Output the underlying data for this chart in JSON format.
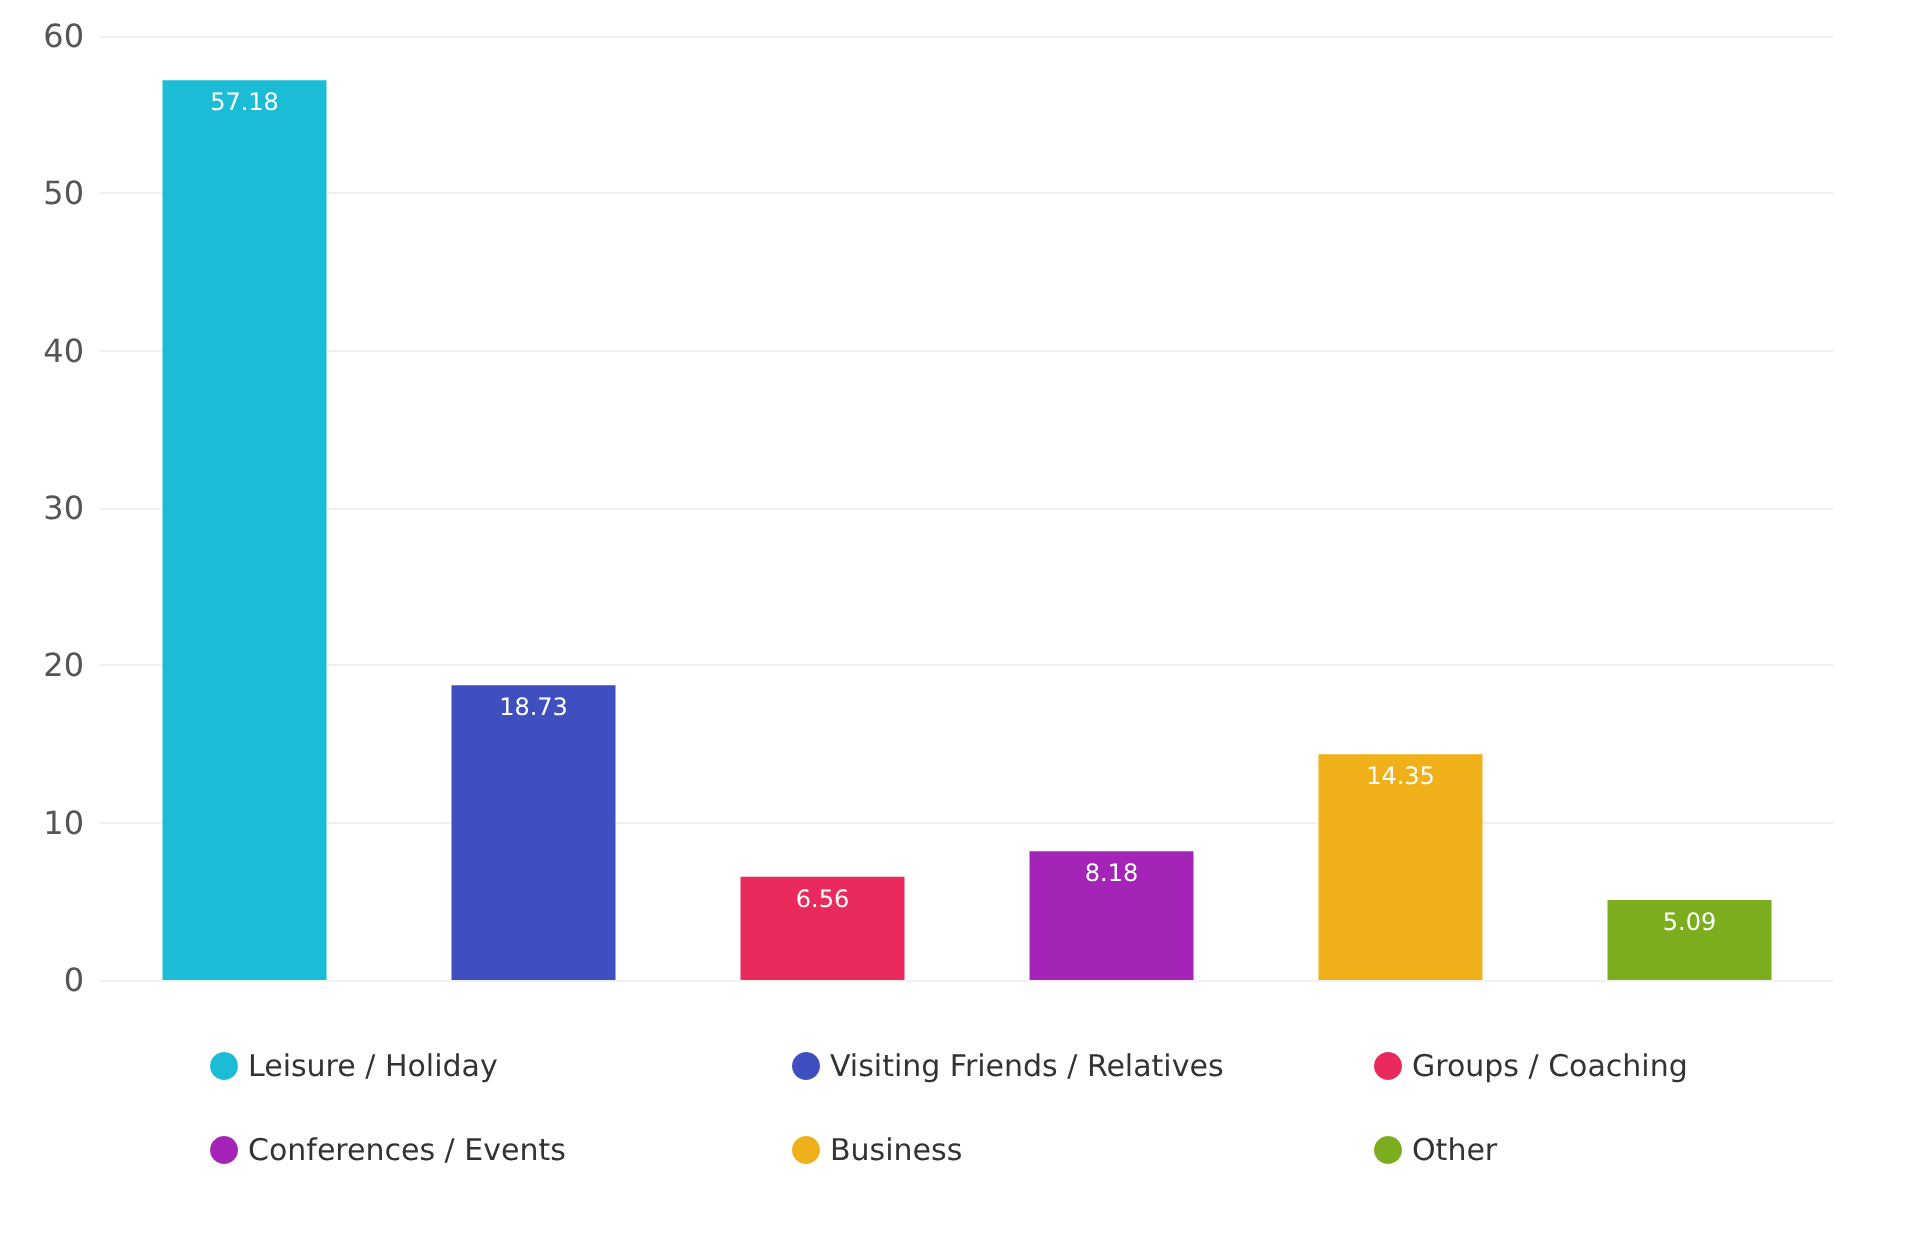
{
  "chart_data": {
    "type": "bar",
    "categories": [
      null,
      null,
      null,
      null,
      null,
      null
    ],
    "series": [
      {
        "name": "Leisure / Holiday",
        "color": "#1dbcd6",
        "values": [
          57.18,
          null,
          null,
          null,
          null,
          null
        ]
      },
      {
        "name": "Visiting Friends / Relatives",
        "color": "#3f4fbf",
        "values": [
          null,
          18.73,
          null,
          null,
          null,
          null
        ]
      },
      {
        "name": "Groups / Coaching",
        "color": "#ea2a5c",
        "values": [
          null,
          null,
          6.56,
          null,
          null,
          null
        ]
      },
      {
        "name": "Conferences / Events",
        "color": "#a524b8",
        "values": [
          null,
          null,
          null,
          8.18,
          null,
          null
        ]
      },
      {
        "name": "Business",
        "color": "#f0b01a",
        "values": [
          null,
          null,
          null,
          null,
          14.35,
          null
        ]
      },
      {
        "name": "Other",
        "color": "#7cad1f",
        "values": [
          null,
          null,
          null,
          null,
          null,
          5.09
        ]
      }
    ],
    "ylim": [
      0,
      60
    ],
    "yticks": [
      0,
      10,
      20,
      30,
      40,
      50,
      60
    ],
    "grid": "y",
    "legend": "bottom",
    "data_labels": true,
    "tick_labels": "y"
  }
}
